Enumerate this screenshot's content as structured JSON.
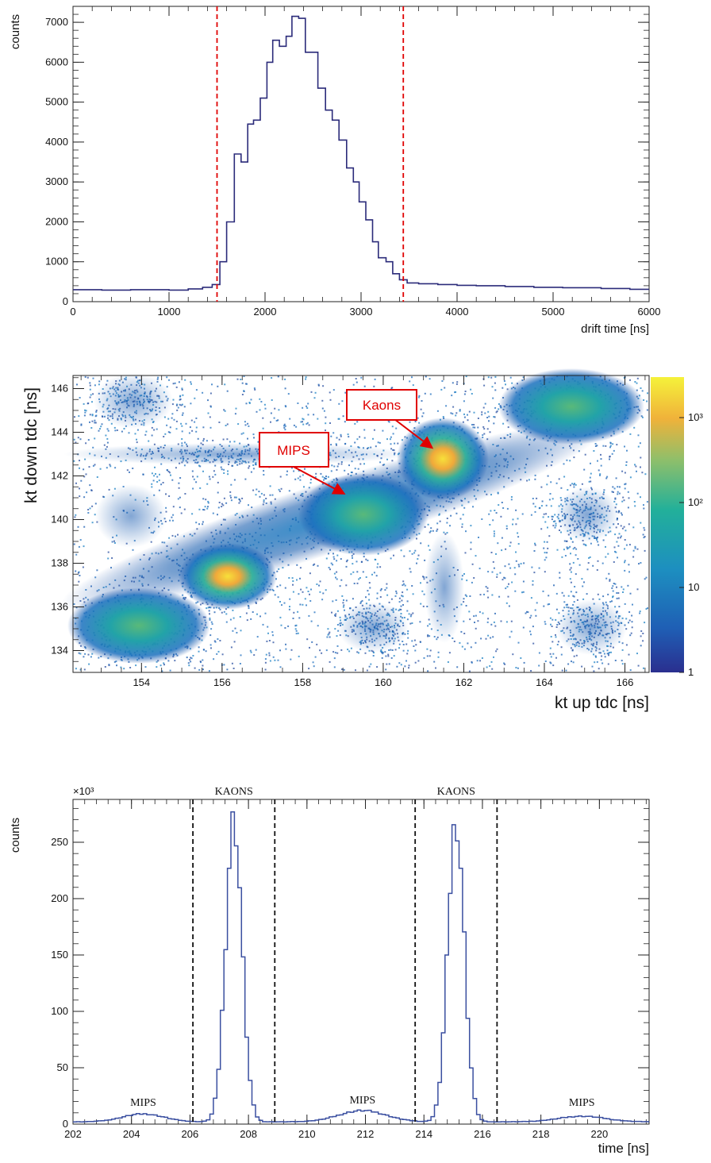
{
  "chart_data": [
    {
      "type": "histogram",
      "xlabel": "drift time [ns]",
      "ylabel": "counts",
      "xlim": [
        0,
        6000
      ],
      "ylim": [
        0,
        7400
      ],
      "xticks": [
        "0",
        "1000",
        "2000",
        "3000",
        "4000",
        "5000",
        "6000"
      ],
      "yticks": [
        "0",
        "1000",
        "2000",
        "3000",
        "4000",
        "5000",
        "6000",
        "7000"
      ],
      "line_color": "#2b2b7a",
      "cut_color": "#e00000",
      "cuts": [
        1500,
        3440
      ],
      "bins": [
        [
          0,
          300
        ],
        [
          300,
          290
        ],
        [
          600,
          300
        ],
        [
          1000,
          290
        ],
        [
          1200,
          320
        ],
        [
          1350,
          360
        ],
        [
          1450,
          430
        ],
        [
          1530,
          1000
        ],
        [
          1600,
          2000
        ],
        [
          1680,
          3700
        ],
        [
          1750,
          3500
        ],
        [
          1820,
          4450
        ],
        [
          1880,
          4550
        ],
        [
          1950,
          5100
        ],
        [
          2020,
          6000
        ],
        [
          2080,
          6550
        ],
        [
          2150,
          6400
        ],
        [
          2220,
          6650
        ],
        [
          2280,
          7150
        ],
        [
          2350,
          7100
        ],
        [
          2420,
          6250
        ],
        [
          2550,
          5350
        ],
        [
          2630,
          4800
        ],
        [
          2700,
          4550
        ],
        [
          2770,
          4050
        ],
        [
          2850,
          3350
        ],
        [
          2920,
          3000
        ],
        [
          2980,
          2500
        ],
        [
          3050,
          2050
        ],
        [
          3120,
          1500
        ],
        [
          3180,
          1100
        ],
        [
          3260,
          1000
        ],
        [
          3330,
          700
        ],
        [
          3400,
          550
        ],
        [
          3480,
          470
        ],
        [
          3600,
          450
        ],
        [
          3800,
          430
        ],
        [
          4000,
          410
        ],
        [
          4200,
          400
        ],
        [
          4500,
          380
        ],
        [
          4800,
          360
        ],
        [
          5100,
          350
        ],
        [
          5500,
          330
        ],
        [
          5800,
          310
        ],
        [
          6000,
          310
        ]
      ]
    },
    {
      "type": "heatmap",
      "xlabel": "kt up tdc [ns]",
      "ylabel": "kt down tdc [ns]",
      "xlim": [
        152.3,
        166.6
      ],
      "ylim": [
        133,
        146.6
      ],
      "xticks": [
        "154",
        "156",
        "158",
        "160",
        "162",
        "164",
        "166"
      ],
      "yticks": [
        "134",
        "136",
        "138",
        "140",
        "142",
        "144",
        "146"
      ],
      "colorbar": {
        "scale": "log",
        "range": [
          1,
          3000
        ],
        "labels": [
          "1",
          "10",
          "10²",
          "10³"
        ]
      },
      "annotations": [
        {
          "text": "Kaons",
          "target": [
            161.5,
            142.6
          ]
        },
        {
          "text": "MIPS",
          "target": [
            159.5,
            140.2
          ]
        }
      ]
    },
    {
      "type": "histogram",
      "xlabel": "time [ns]",
      "ylabel": "counts",
      "y_multiplier": "×10³",
      "xlim": [
        202,
        221.7
      ],
      "ylim": [
        0,
        288
      ],
      "xticks": [
        "202",
        "204",
        "206",
        "208",
        "210",
        "212",
        "214",
        "216",
        "218",
        "220"
      ],
      "yticks": [
        "0",
        "50",
        "100",
        "150",
        "200",
        "250"
      ],
      "line_color": "#3a4fa0",
      "cut_color": "#111111",
      "cuts": [
        206.1,
        208.9,
        213.7,
        216.5
      ],
      "region_labels": [
        {
          "text": "MIPS",
          "x": 204.4,
          "y": 12
        },
        {
          "text": "KAONS",
          "x": 207.5,
          "y": 295
        },
        {
          "text": "MIPS",
          "x": 211.9,
          "y": 14
        },
        {
          "text": "KAONS",
          "x": 215.1,
          "y": 295
        },
        {
          "text": "MIPS",
          "x": 219.4,
          "y": 12
        }
      ],
      "peaks": [
        {
          "center": 204.4,
          "height": 7,
          "width": 0.7
        },
        {
          "center": 207.5,
          "height": 268,
          "width": 0.28
        },
        {
          "center": 211.9,
          "height": 10,
          "width": 0.8
        },
        {
          "center": 215.1,
          "height": 268,
          "width": 0.28
        },
        {
          "center": 219.4,
          "height": 5,
          "width": 0.8
        }
      ],
      "baseline": 2
    }
  ]
}
